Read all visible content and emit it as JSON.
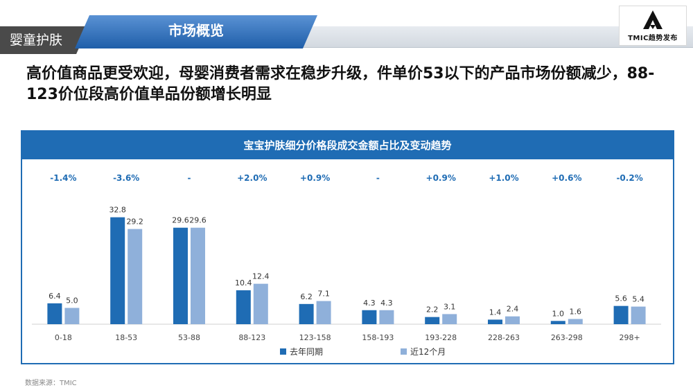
{
  "header": {
    "category_tag": "婴童护肤",
    "section_title": "市场概览",
    "logo_text": "TMIC趋势发布"
  },
  "headline": "高价值商品更受欢迎，母婴消费者需求在稳步升级，件单价53以下的产品市场份额减少，88-123价位段高价值单品份额增长明显",
  "chart_data": {
    "type": "bar",
    "title": "宝宝护肤细分价格段成交金额占比及变动趋势",
    "categories": [
      "0-18",
      "18-53",
      "53-88",
      "88-123",
      "123-158",
      "158-193",
      "193-228",
      "228-263",
      "263-298",
      "298+"
    ],
    "series": [
      {
        "name": "去年同期",
        "values": [
          6.4,
          32.8,
          29.6,
          10.4,
          6.2,
          4.3,
          2.2,
          1.4,
          1.0,
          5.6
        ],
        "value_labels": [
          "6.4",
          "32.8",
          "29.6",
          "10.4",
          "6.2",
          "4.3",
          "2.2",
          "1.4",
          "1.0",
          "5.6"
        ],
        "color": "#1f6cb4"
      },
      {
        "name": "近12个月",
        "values": [
          5.0,
          29.2,
          29.6,
          12.4,
          7.1,
          4.3,
          3.1,
          2.4,
          1.6,
          5.4
        ],
        "value_labels": [
          "5.0",
          "29.2",
          "29.6",
          "12.4",
          "7.1",
          "4.3",
          "3.1",
          "2.4",
          "1.6",
          "5.4"
        ],
        "color": "#8fb0da"
      }
    ],
    "changes": [
      "-1.4%",
      "-3.6%",
      "-",
      "+2.0%",
      "+0.9%",
      "-",
      "+0.9%",
      "+1.0%",
      "+0.6%",
      "-0.2%"
    ],
    "change_color": "#1f6cb4",
    "ylim": [
      0,
      34
    ],
    "legend_position": "bottom-center"
  },
  "source": "数据来源：TMIC"
}
